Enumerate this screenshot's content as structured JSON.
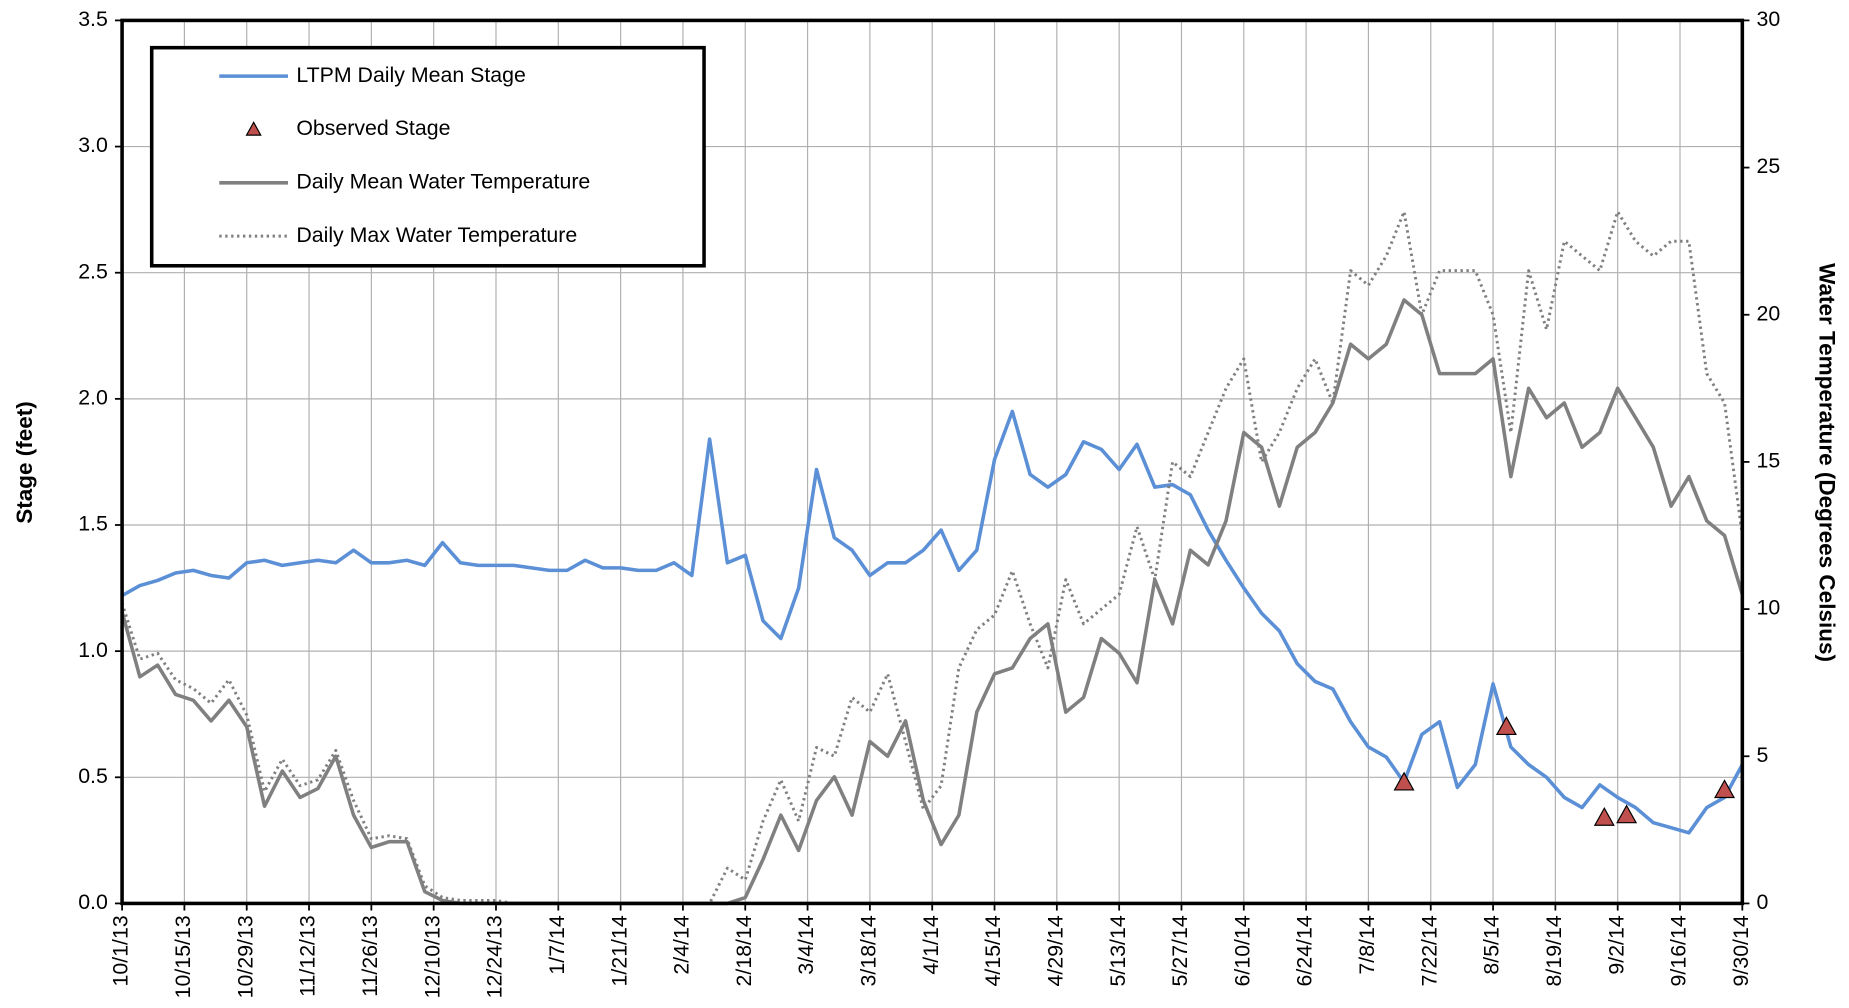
{
  "chart_data": {
    "type": "line",
    "x": [
      "10/1/13",
      "10/5/13",
      "10/9/13",
      "10/13/13",
      "10/17/13",
      "10/21/13",
      "10/25/13",
      "10/29/13",
      "11/2/13",
      "11/6/13",
      "11/10/13",
      "11/14/13",
      "11/18/13",
      "11/22/13",
      "11/26/13",
      "11/30/13",
      "12/4/13",
      "12/8/13",
      "12/12/13",
      "12/16/13",
      "12/20/13",
      "12/24/13",
      "12/28/13",
      "1/1/14",
      "1/5/14",
      "1/9/14",
      "1/13/14",
      "1/17/14",
      "1/21/14",
      "1/25/14",
      "1/29/14",
      "2/2/14",
      "2/6/14",
      "2/10/14",
      "2/14/14",
      "2/18/14",
      "2/22/14",
      "2/26/14",
      "3/2/14",
      "3/6/14",
      "3/10/14",
      "3/14/14",
      "3/18/14",
      "3/22/14",
      "3/26/14",
      "3/30/14",
      "4/3/14",
      "4/7/14",
      "4/11/14",
      "4/15/14",
      "4/19/14",
      "4/23/14",
      "4/27/14",
      "5/1/14",
      "5/5/14",
      "5/9/14",
      "5/13/14",
      "5/17/14",
      "5/21/14",
      "5/25/14",
      "5/29/14",
      "6/2/14",
      "6/6/14",
      "6/10/14",
      "6/14/14",
      "6/18/14",
      "6/22/14",
      "6/26/14",
      "6/30/14",
      "7/4/14",
      "7/8/14",
      "7/12/14",
      "7/16/14",
      "7/20/14",
      "7/24/14",
      "7/28/14",
      "8/1/14",
      "8/5/14",
      "8/9/14",
      "8/13/14",
      "8/17/14",
      "8/21/14",
      "8/25/14",
      "8/29/14",
      "9/2/14",
      "9/6/14",
      "9/10/14",
      "9/14/14",
      "9/18/14",
      "9/22/14",
      "9/26/14",
      "9/30/14"
    ],
    "series": [
      {
        "name": "LTPM Daily Mean Stage",
        "color": "#5b8fd6",
        "style": "solid",
        "axis": "y",
        "values": [
          1.22,
          1.26,
          1.28,
          1.31,
          1.32,
          1.3,
          1.29,
          1.35,
          1.36,
          1.34,
          1.35,
          1.36,
          1.35,
          1.4,
          1.35,
          1.35,
          1.36,
          1.34,
          1.43,
          1.35,
          1.34,
          1.34,
          1.34,
          1.33,
          1.32,
          1.32,
          1.36,
          1.33,
          1.33,
          1.32,
          1.32,
          1.35,
          1.3,
          1.84,
          1.35,
          1.38,
          1.12,
          1.05,
          1.25,
          1.72,
          1.45,
          1.4,
          1.3,
          1.35,
          1.35,
          1.4,
          1.48,
          1.32,
          1.4,
          1.76,
          1.95,
          1.7,
          1.65,
          1.7,
          1.83,
          1.8,
          1.72,
          1.82,
          1.65,
          1.66,
          1.62,
          1.48,
          1.36,
          1.25,
          1.15,
          1.08,
          0.95,
          0.88,
          0.85,
          0.72,
          0.62,
          0.58,
          0.48,
          0.67,
          0.72,
          0.46,
          0.55,
          0.87,
          0.62,
          0.55,
          0.5,
          0.42,
          0.38,
          0.47,
          0.42,
          0.38,
          0.32,
          0.3,
          0.28,
          0.38,
          0.42,
          0.55
        ]
      },
      {
        "name": "Observed Stage",
        "color": "#c0504d",
        "marker": "triangle",
        "axis": "y",
        "x": [
          "7/16/14",
          "8/8/14",
          "8/30/14",
          "9/4/14",
          "9/26/14"
        ],
        "values": [
          0.48,
          0.7,
          0.34,
          0.35,
          0.45
        ]
      },
      {
        "name": "Daily Mean Water Temperature",
        "color": "#808080",
        "style": "solid",
        "axis": "y2",
        "values": [
          9.9,
          7.7,
          8.1,
          7.1,
          6.9,
          6.2,
          6.9,
          6.0,
          3.3,
          4.5,
          3.6,
          3.9,
          5.0,
          3.0,
          1.9,
          2.1,
          2.1,
          0.4,
          0.1,
          0,
          0,
          0,
          0,
          0,
          0,
          0,
          0,
          0,
          0,
          0,
          0,
          0,
          0,
          0,
          0,
          0.2,
          1.5,
          3.0,
          1.8,
          3.5,
          4.3,
          3.0,
          5.5,
          5.0,
          6.2,
          3.5,
          2.0,
          3.0,
          6.5,
          7.8,
          8.0,
          9.0,
          9.5,
          6.5,
          7.0,
          9.0,
          8.5,
          7.5,
          11.0,
          9.5,
          12.0,
          11.5,
          13.0,
          16.0,
          15.5,
          13.5,
          15.5,
          16.0,
          17.0,
          19.0,
          18.5,
          19.0,
          20.5,
          20.0,
          18.0,
          18.0,
          18.0,
          18.5,
          14.5,
          17.5,
          16.5,
          17.0,
          15.5,
          16.0,
          17.5,
          16.5,
          15.5,
          13.5,
          14.5,
          13.0,
          12.5,
          10.5
        ]
      },
      {
        "name": "Daily Max Water Temperature",
        "color": "#808080",
        "style": "dotted",
        "axis": "y2",
        "values": [
          10.2,
          8.3,
          8.5,
          7.6,
          7.3,
          6.8,
          7.6,
          6.4,
          3.8,
          4.9,
          4.0,
          4.2,
          5.2,
          3.5,
          2.2,
          2.3,
          2.2,
          0.6,
          0.2,
          0.1,
          0.1,
          0.1,
          0,
          0,
          0,
          0,
          0,
          0,
          0,
          0,
          0,
          0,
          0,
          0,
          1.2,
          0.8,
          2.8,
          4.2,
          2.8,
          5.3,
          5.0,
          7.0,
          6.5,
          7.8,
          5.5,
          3.2,
          4.0,
          8.0,
          9.3,
          9.8,
          11.3,
          9.5,
          8.0,
          11.0,
          9.5,
          10.0,
          10.5,
          12.8,
          11.0,
          15.0,
          14.5,
          16.0,
          17.5,
          18.5,
          15.0,
          16.0,
          17.5,
          18.5,
          17.0,
          21.5,
          21.0,
          22.0,
          23.5,
          20.0,
          21.5,
          21.5,
          21.5,
          20.0,
          16.0,
          21.5,
          19.5,
          22.5,
          22.0,
          21.5,
          23.5,
          22.5,
          22.0,
          22.5,
          22.5,
          18.0,
          17.0,
          12.5
        ]
      }
    ],
    "xlim": [
      "10/1/13",
      "9/30/14"
    ],
    "xticks": [
      "10/1/13",
      "10/15/13",
      "10/29/13",
      "11/12/13",
      "11/26/13",
      "12/10/13",
      "12/24/13",
      "1/7/14",
      "1/21/14",
      "2/4/14",
      "2/18/14",
      "3/4/14",
      "3/18/14",
      "4/1/14",
      "4/15/14",
      "4/29/14",
      "5/13/14",
      "5/27/14",
      "6/10/14",
      "6/24/14",
      "7/8/14",
      "7/22/14",
      "8/5/14",
      "8/19/14",
      "9/2/14",
      "9/16/14",
      "9/30/14"
    ],
    "ylim": [
      0,
      3.5
    ],
    "yticks": [
      {
        "value": 0,
        "label": "0.0"
      },
      {
        "value": 0.5,
        "label": "0.5"
      },
      {
        "value": 1,
        "label": "1.0"
      },
      {
        "value": 1.5,
        "label": "1.5"
      },
      {
        "value": 2,
        "label": "2.0"
      },
      {
        "value": 2.5,
        "label": "2.5"
      },
      {
        "value": 3,
        "label": "3.0"
      },
      {
        "value": 3.5,
        "label": "3.5"
      }
    ],
    "y2lim": [
      0,
      30
    ],
    "y2ticks": [
      0,
      5,
      10,
      15,
      20,
      25,
      30
    ],
    "ylabel": "Stage (feet)",
    "y2label": "Water Temperature (Degrees Celsius)",
    "grid": true,
    "legend": "upper left"
  }
}
